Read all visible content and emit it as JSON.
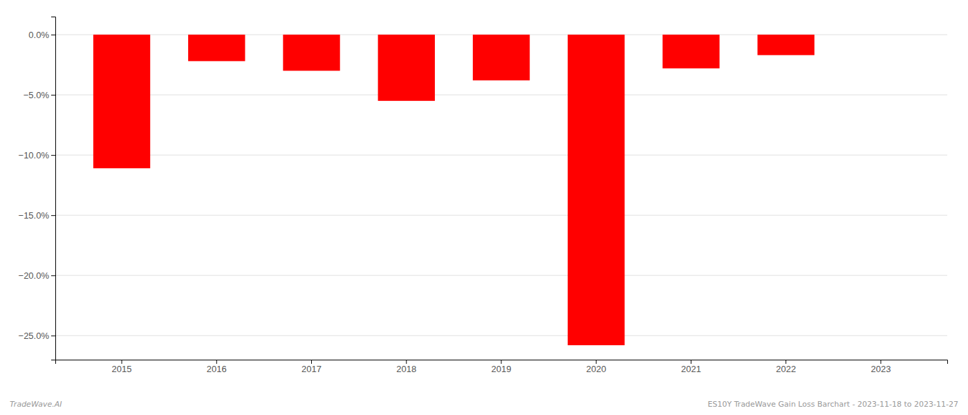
{
  "chart_data": {
    "type": "bar",
    "categories": [
      "2015",
      "2016",
      "2017",
      "2018",
      "2019",
      "2020",
      "2021",
      "2022",
      "2023"
    ],
    "values": [
      -0.111,
      -0.022,
      -0.03,
      -0.055,
      -0.038,
      -0.258,
      -0.028,
      -0.017,
      0.0
    ],
    "color": "#ff0000",
    "ylim": [
      -0.27,
      0.015
    ],
    "yticks": [
      {
        "value": 0.0,
        "label": "0.0%"
      },
      {
        "value": -0.05,
        "label": "−5.0%"
      },
      {
        "value": -0.1,
        "label": "−10.0%"
      },
      {
        "value": -0.15,
        "label": "−15.0%"
      },
      {
        "value": -0.2,
        "label": "−20.0%"
      },
      {
        "value": -0.25,
        "label": "−25.0%"
      }
    ],
    "grid": true,
    "annotations": [
      "TradeWave.AI",
      "ES10Y TradeWave Gain Loss Barchart - 2023-11-18 to 2023-11-27"
    ]
  }
}
